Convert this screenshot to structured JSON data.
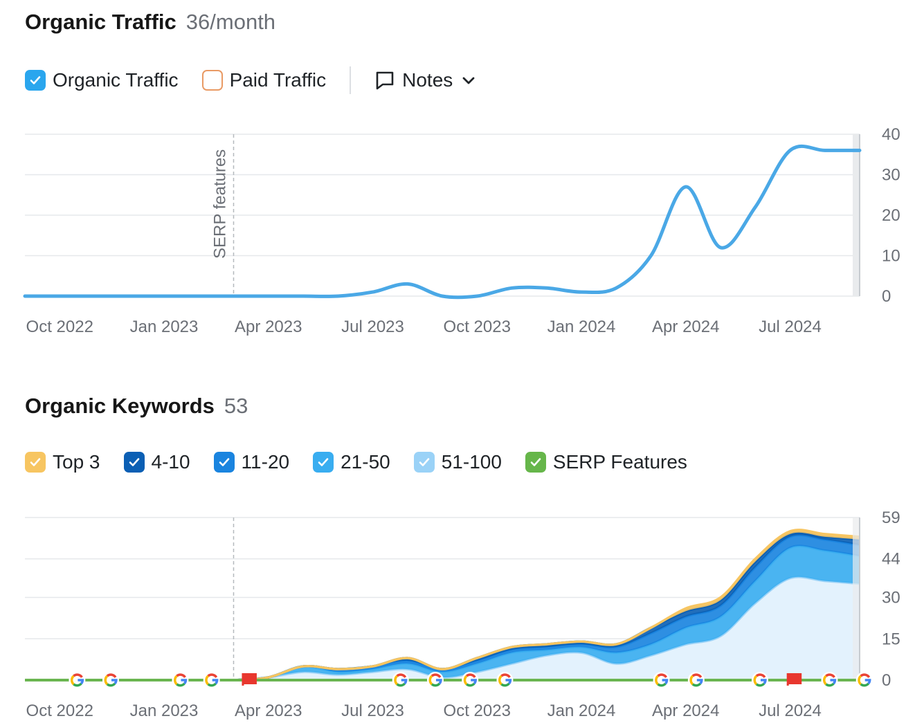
{
  "traffic": {
    "title": "Organic Traffic",
    "value": "36/month",
    "legend": {
      "organic_label": "Organic Traffic",
      "paid_label": "Paid Traffic",
      "notes_label": "Notes"
    }
  },
  "keywords": {
    "title": "Organic Keywords",
    "value": "53",
    "legend": [
      {
        "label": "Top 3",
        "color": "#f7c561"
      },
      {
        "label": "4-10",
        "color": "#0b5fb4"
      },
      {
        "label": "11-20",
        "color": "#1a84df"
      },
      {
        "label": "21-50",
        "color": "#39adf0"
      },
      {
        "label": "51-100",
        "color": "#9ad2f7"
      },
      {
        "label": "SERP Features",
        "color": "#66b64a"
      }
    ]
  },
  "colors": {
    "organic_line": "#4aa8e6",
    "paid_box": "#e99a64",
    "checkbox_blue": "#2aa6ee",
    "grid": "#e6e8eb",
    "serp_line": "#6ab550",
    "flag": "#e8372e"
  },
  "icons": {
    "notes": "comment-icon",
    "dropdown": "chevron-down-icon",
    "google": "google-icon",
    "flag": "flag-icon"
  },
  "chart_data": [
    {
      "type": "line",
      "x_ticks": [
        "Oct 2022",
        "Jan 2023",
        "Apr 2023",
        "Jul 2023",
        "Oct 2023",
        "Jan 2024",
        "Apr 2024",
        "Jul 2024"
      ],
      "y_ticks": [
        0,
        10,
        20,
        30,
        40
      ],
      "ylim": [
        0,
        40
      ],
      "xlim": [
        "2022-09",
        "2024-09"
      ],
      "annotation": {
        "label": "SERP features",
        "x": "2023-03"
      },
      "series": [
        {
          "name": "Organic Traffic",
          "x": [
            "2022-09",
            "2022-10",
            "2022-11",
            "2022-12",
            "2023-01",
            "2023-02",
            "2023-03",
            "2023-04",
            "2023-05",
            "2023-06",
            "2023-07",
            "2023-08",
            "2023-09",
            "2023-10",
            "2023-11",
            "2023-12",
            "2024-01",
            "2024-02",
            "2024-03",
            "2024-04",
            "2024-05",
            "2024-06",
            "2024-07",
            "2024-08",
            "2024-09"
          ],
          "y": [
            0,
            0,
            0,
            0,
            0,
            0,
            0,
            0,
            0,
            0,
            1,
            3,
            0,
            0,
            2,
            2,
            1,
            2,
            10,
            27,
            12,
            22,
            36,
            36,
            36
          ]
        }
      ]
    },
    {
      "type": "area",
      "x_ticks": [
        "Oct 2022",
        "Jan 2023",
        "Apr 2023",
        "Jul 2023",
        "Oct 2023",
        "Jan 2024",
        "Apr 2024",
        "Jul 2024"
      ],
      "y_ticks": [
        0,
        15,
        30,
        44,
        59
      ],
      "ylim": [
        0,
        59
      ],
      "xlim": [
        "2022-09",
        "2024-09"
      ],
      "stacked": true,
      "x": [
        "2022-09",
        "2022-10",
        "2022-11",
        "2022-12",
        "2023-01",
        "2023-02",
        "2023-03",
        "2023-04",
        "2023-05",
        "2023-06",
        "2023-07",
        "2023-08",
        "2023-09",
        "2023-10",
        "2023-11",
        "2023-12",
        "2024-01",
        "2024-02",
        "2024-03",
        "2024-04",
        "2024-05",
        "2024-06",
        "2024-07",
        "2024-08",
        "2024-09"
      ],
      "series": [
        {
          "name": "51-100",
          "values": [
            0,
            0,
            0,
            0,
            0,
            0,
            0,
            1,
            3,
            2,
            3,
            4,
            1,
            3,
            6,
            9,
            10,
            6,
            9,
            13,
            16,
            28,
            37,
            36,
            35
          ]
        },
        {
          "name": "21-50",
          "values": [
            0,
            0,
            0,
            0,
            0,
            0,
            0,
            0,
            2,
            1,
            1,
            2,
            2,
            3,
            4,
            2,
            2,
            4,
            4,
            6,
            7,
            8,
            11,
            11,
            10
          ]
        },
        {
          "name": "11-20",
          "values": [
            0,
            0,
            0,
            0,
            0,
            0,
            0,
            0,
            0,
            1,
            1,
            1,
            1,
            1,
            1,
            1,
            1,
            2,
            4,
            4,
            4,
            5,
            4,
            4,
            4
          ]
        },
        {
          "name": "4-10",
          "values": [
            0,
            0,
            0,
            0,
            0,
            0,
            0,
            0,
            0,
            0,
            0,
            1,
            0,
            1,
            1,
            1,
            1,
            1,
            2,
            2,
            2,
            2,
            1,
            1,
            2
          ]
        },
        {
          "name": "Top 3",
          "values": [
            0,
            0,
            0,
            0,
            0,
            0,
            0,
            0,
            0,
            0,
            0,
            0,
            0,
            0,
            0,
            0,
            0,
            0,
            0,
            1,
            1,
            1,
            1,
            1,
            1
          ]
        }
      ],
      "serp_features": {
        "name": "SERP Features",
        "values": [
          0,
          0,
          0,
          0,
          0,
          0,
          0,
          0,
          0,
          0,
          0,
          0,
          0,
          0,
          0,
          0,
          0,
          0,
          0,
          0,
          0,
          0,
          0,
          0,
          0
        ]
      },
      "markers": [
        {
          "type": "google",
          "x": "2022-10-16"
        },
        {
          "type": "google",
          "x": "2022-11-15"
        },
        {
          "type": "google",
          "x": "2023-01-15"
        },
        {
          "type": "google",
          "x": "2023-02-12"
        },
        {
          "type": "flag",
          "x": "2023-03-15"
        },
        {
          "type": "google",
          "x": "2023-07-25"
        },
        {
          "type": "google",
          "x": "2023-08-25"
        },
        {
          "type": "google",
          "x": "2023-09-25"
        },
        {
          "type": "google",
          "x": "2023-10-25"
        },
        {
          "type": "google",
          "x": "2024-03-10"
        },
        {
          "type": "google",
          "x": "2024-04-10"
        },
        {
          "type": "google",
          "x": "2024-06-05"
        },
        {
          "type": "flag",
          "x": "2024-07-05"
        },
        {
          "type": "google",
          "x": "2024-08-05"
        },
        {
          "type": "google",
          "x": "2024-09-05"
        }
      ]
    }
  ]
}
